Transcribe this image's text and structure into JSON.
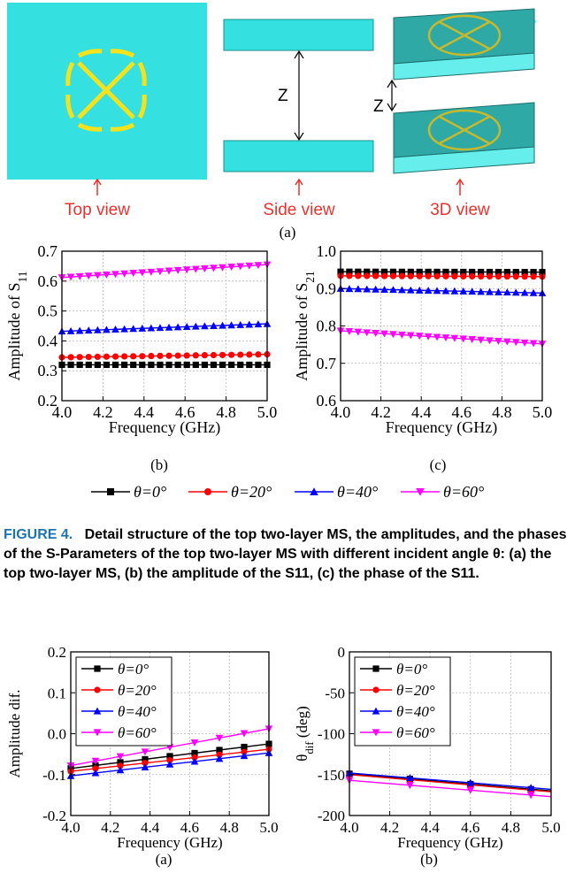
{
  "figure_a": {
    "z_label": "Z",
    "view_labels": [
      "Top view",
      "Side view",
      "3D view"
    ],
    "sublabel": "(a)",
    "colors": {
      "substrate": "#35e1e0",
      "pattern": "#f5e21c",
      "box_side": "#2fa9a6",
      "box_front": "#6ff0ee"
    }
  },
  "top_panels": {
    "sub_b": "(b)",
    "sub_c": "(c)",
    "legend": [
      "θ=0°",
      "θ=20°",
      "θ=40°",
      "θ=60°"
    ]
  },
  "caption": {
    "figure_label": "FIGURE 4.",
    "text": "Detail structure of the top two-layer MS, the amplitudes, and the phases of the S-Parameters of the top two-layer MS with different incident angle θ: (a) the top two-layer MS, (b) the amplitude of the S11, (c) the phase of the S11."
  },
  "bottom_panels": {
    "sub_a": "(a)",
    "sub_b": "(b)"
  },
  "series_colors": [
    "#000000",
    "#ff0000",
    "#0000ff",
    "#ff00ff"
  ],
  "chart_data": [
    {
      "type": "line",
      "id": "b",
      "xlabel": "Frequency (GHz)",
      "ylabel": "Amplitude of S11",
      "ylabel_base": "Amplitude of S",
      "ylabel_sub": "11",
      "xlim": [
        4.0,
        5.0
      ],
      "ylim": [
        0.2,
        0.7
      ],
      "xticks": [
        "4.0",
        "4.2",
        "4.4",
        "4.6",
        "4.8",
        "5.0"
      ],
      "yticks": [
        "0.2",
        "0.3",
        "0.4",
        "0.5",
        "0.6",
        "0.7"
      ],
      "grid": true,
      "legend": "shared-below",
      "series": [
        {
          "name": "θ=0°",
          "marker": "square",
          "y0": 0.32,
          "y1": 0.32,
          "n": 24
        },
        {
          "name": "θ=20°",
          "marker": "circle",
          "y0": 0.345,
          "y1": 0.355,
          "n": 24
        },
        {
          "name": "θ=40°",
          "marker": "triangle-up",
          "y0": 0.432,
          "y1": 0.457,
          "n": 24
        },
        {
          "name": "θ=60°",
          "marker": "triangle-down",
          "y0": 0.612,
          "y1": 0.655,
          "n": 24
        }
      ]
    },
    {
      "type": "line",
      "id": "c",
      "xlabel": "Frequency (GHz)",
      "ylabel": "Amplitude of S21",
      "ylabel_base": "Amplitude of S",
      "ylabel_sub": "21",
      "xlim": [
        4.0,
        5.0
      ],
      "ylim": [
        0.6,
        1.0
      ],
      "xticks": [
        "4.0",
        "4.2",
        "4.4",
        "4.6",
        "4.8",
        "5.0"
      ],
      "yticks": [
        "0.6",
        "0.7",
        "0.8",
        "0.9",
        "1.0"
      ],
      "grid": true,
      "legend": "shared-below",
      "series": [
        {
          "name": "θ=0°",
          "marker": "square",
          "y0": 0.945,
          "y1": 0.944,
          "n": 24
        },
        {
          "name": "θ=20°",
          "marker": "circle",
          "y0": 0.934,
          "y1": 0.932,
          "n": 24
        },
        {
          "name": "θ=40°",
          "marker": "triangle-up",
          "y0": 0.9,
          "y1": 0.888,
          "n": 24
        },
        {
          "name": "θ=60°",
          "marker": "triangle-down",
          "y0": 0.787,
          "y1": 0.752,
          "n": 24
        }
      ]
    },
    {
      "type": "line",
      "id": "a2",
      "xlabel": "Frequency (GHz)",
      "ylabel": "Amplitude dif.",
      "xlim": [
        4.0,
        5.0
      ],
      "ylim": [
        -0.2,
        0.2
      ],
      "xticks": [
        "4.0",
        "4.2",
        "4.4",
        "4.6",
        "4.8",
        "5.0"
      ],
      "yticks": [
        "-0.2",
        "-0.1",
        "0.0",
        "0.1",
        "0.2"
      ],
      "grid": true,
      "legend": "top-left",
      "series": [
        {
          "name": "θ=0°",
          "marker": "square",
          "y0": -0.085,
          "y1": -0.025,
          "n": 9
        },
        {
          "name": "θ=20°",
          "marker": "circle",
          "y0": -0.092,
          "y1": -0.038,
          "n": 9
        },
        {
          "name": "θ=40°",
          "marker": "triangle-up",
          "y0": -0.103,
          "y1": -0.047,
          "n": 9
        },
        {
          "name": "θ=60°",
          "marker": "triangle-down",
          "y0": -0.078,
          "y1": 0.012,
          "n": 9
        }
      ]
    },
    {
      "type": "line",
      "id": "b2",
      "xlabel": "Frequency (GHz)",
      "ylabel": "θdif (deg)",
      "ylabel_base": "θ",
      "ylabel_sub": "dif",
      "ylabel_tail": " (deg)",
      "xlim": [
        4.0,
        5.0
      ],
      "ylim": [
        -200,
        0
      ],
      "xticks": [
        "4.0",
        "4.2",
        "4.4",
        "4.6",
        "4.8",
        "5.0"
      ],
      "yticks": [
        "-200",
        "-150",
        "-100",
        "-50",
        "0"
      ],
      "grid": true,
      "legend": "top-left",
      "series": [
        {
          "name": "θ=0°",
          "marker": "square",
          "y0": -149,
          "y1": -170,
          "n": 4
        },
        {
          "name": "θ=20°",
          "marker": "circle",
          "y0": -150,
          "y1": -171,
          "n": 4
        },
        {
          "name": "θ=40°",
          "marker": "triangle-up",
          "y0": -148,
          "y1": -168,
          "n": 4
        },
        {
          "name": "θ=60°",
          "marker": "triangle-down",
          "y0": -157,
          "y1": -177,
          "n": 4
        }
      ]
    }
  ]
}
